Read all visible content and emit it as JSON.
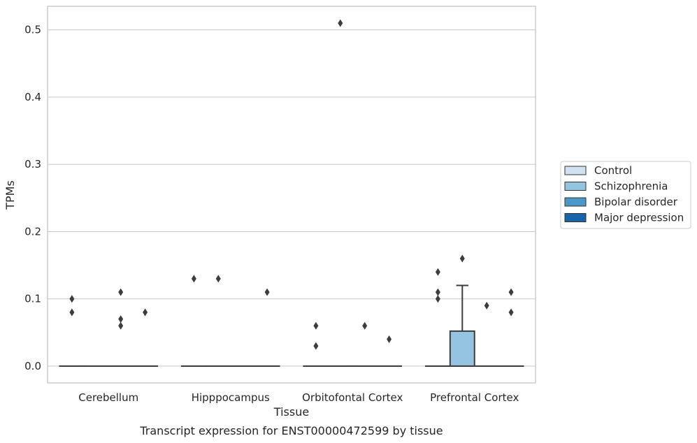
{
  "chart_data": {
    "type": "box",
    "xlabel": "Tissue",
    "ylabel": "TPMs",
    "caption": "Transcript expression for ENST00000472599 by tissue",
    "categories": [
      "Cerebellum",
      "Hipppocampus",
      "Orbitofontal Cortex",
      "Prefrontal Cortex"
    ],
    "ylim": [
      -0.025,
      0.535
    ],
    "yticks": [
      "0.0",
      "0.1",
      "0.2",
      "0.3",
      "0.4",
      "0.5"
    ],
    "ytick_values": [
      0.0,
      0.1,
      0.2,
      0.3,
      0.4,
      0.5
    ],
    "grid": true,
    "legend_position": "right",
    "series": [
      {
        "name": "Control",
        "color": "#d0e1f2",
        "boxes": [
          {
            "category": "Cerebellum",
            "q1": 0,
            "median": 0,
            "q3": 0,
            "whisker_low": 0,
            "whisker_high": 0,
            "outliers": [
              0.1,
              0.08
            ]
          },
          {
            "category": "Hipppocampus",
            "q1": 0,
            "median": 0,
            "q3": 0,
            "whisker_low": 0,
            "whisker_high": 0,
            "outliers": [
              0.13
            ]
          },
          {
            "category": "Orbitofontal Cortex",
            "q1": 0,
            "median": 0,
            "q3": 0,
            "whisker_low": 0,
            "whisker_high": 0,
            "outliers": [
              0.06,
              0.03
            ]
          },
          {
            "category": "Prefrontal Cortex",
            "q1": 0,
            "median": 0,
            "q3": 0,
            "whisker_low": 0,
            "whisker_high": 0,
            "outliers": [
              0.14,
              0.11,
              0.1
            ]
          }
        ]
      },
      {
        "name": "Schizophrenia",
        "color": "#94c4df",
        "boxes": [
          {
            "category": "Cerebellum",
            "q1": 0,
            "median": 0,
            "q3": 0,
            "whisker_low": 0,
            "whisker_high": 0,
            "outliers": []
          },
          {
            "category": "Hipppocampus",
            "q1": 0,
            "median": 0,
            "q3": 0,
            "whisker_low": 0,
            "whisker_high": 0,
            "outliers": [
              0.13
            ]
          },
          {
            "category": "Orbitofontal Cortex",
            "q1": 0,
            "median": 0,
            "q3": 0,
            "whisker_low": 0,
            "whisker_high": 0,
            "outliers": [
              0.51
            ]
          },
          {
            "category": "Prefrontal Cortex",
            "q1": 0,
            "median": 0,
            "q3": 0.052,
            "whisker_low": 0,
            "whisker_high": 0.12,
            "outliers": [
              0.16
            ]
          }
        ]
      },
      {
        "name": "Bipolar disorder",
        "color": "#4a98c9",
        "boxes": [
          {
            "category": "Cerebellum",
            "q1": 0,
            "median": 0,
            "q3": 0,
            "whisker_low": 0,
            "whisker_high": 0,
            "outliers": [
              0.11,
              0.07,
              0.06
            ]
          },
          {
            "category": "Hipppocampus",
            "q1": 0,
            "median": 0,
            "q3": 0,
            "whisker_low": 0,
            "whisker_high": 0,
            "outliers": []
          },
          {
            "category": "Orbitofontal Cortex",
            "q1": 0,
            "median": 0,
            "q3": 0,
            "whisker_low": 0,
            "whisker_high": 0,
            "outliers": [
              0.06
            ]
          },
          {
            "category": "Prefrontal Cortex",
            "q1": 0,
            "median": 0,
            "q3": 0,
            "whisker_low": 0,
            "whisker_high": 0,
            "outliers": [
              0.09
            ]
          }
        ]
      },
      {
        "name": "Major depression",
        "color": "#1764ab",
        "boxes": [
          {
            "category": "Cerebellum",
            "q1": 0,
            "median": 0,
            "q3": 0,
            "whisker_low": 0,
            "whisker_high": 0,
            "outliers": [
              0.08
            ]
          },
          {
            "category": "Hipppocampus",
            "q1": 0,
            "median": 0,
            "q3": 0,
            "whisker_low": 0,
            "whisker_high": 0,
            "outliers": [
              0.11
            ]
          },
          {
            "category": "Orbitofontal Cortex",
            "q1": 0,
            "median": 0,
            "q3": 0,
            "whisker_low": 0,
            "whisker_high": 0,
            "outliers": [
              0.04
            ]
          },
          {
            "category": "Prefrontal Cortex",
            "q1": 0,
            "median": 0,
            "q3": 0,
            "whisker_low": 0,
            "whisker_high": 0,
            "outliers": [
              0.11,
              0.08
            ]
          }
        ]
      }
    ]
  }
}
